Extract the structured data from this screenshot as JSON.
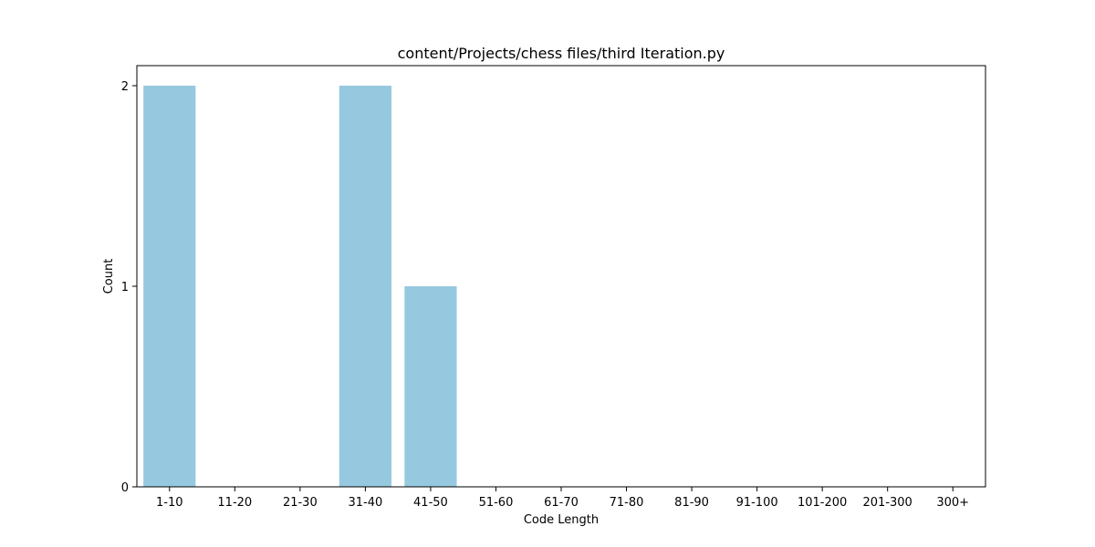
{
  "chart_data": {
    "type": "bar",
    "title": "content/Projects/chess files/third Iteration.py",
    "xlabel": "Code Length",
    "ylabel": "Count",
    "categories": [
      "1-10",
      "11-20",
      "21-30",
      "31-40",
      "41-50",
      "51-60",
      "61-70",
      "71-80",
      "81-90",
      "91-100",
      "101-200",
      "201-300",
      "300+"
    ],
    "values": [
      2,
      0,
      0,
      2,
      1,
      0,
      0,
      0,
      0,
      0,
      0,
      0,
      0
    ],
    "ylim": [
      0,
      2.1
    ],
    "yticks": [
      0,
      1,
      2
    ],
    "bar_color": "#96c9df",
    "grid": false,
    "legend": false
  }
}
